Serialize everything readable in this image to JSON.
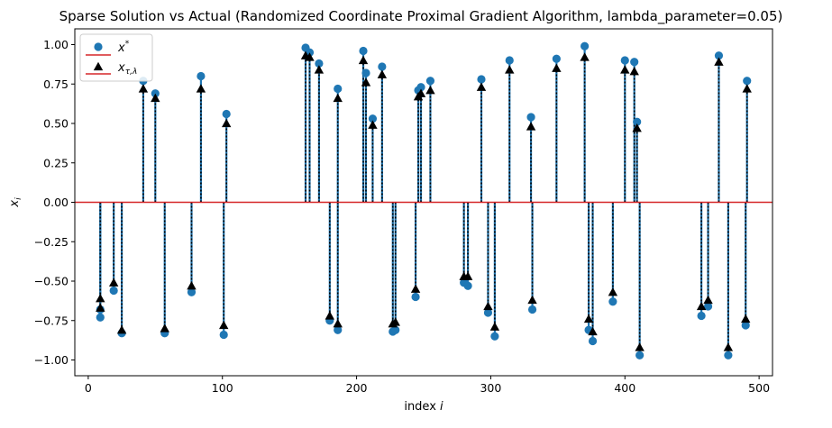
{
  "chart_data": {
    "type": "scatter",
    "title": "Sparse Solution vs Actual (Randomized Coordinate Proximal Gradient Algorithm, lambda_parameter=0.05)",
    "xlabel": "index i",
    "ylabel": "x_i",
    "xlim": [
      -10,
      510
    ],
    "ylim": [
      -1.1,
      1.1
    ],
    "xticks": [
      0,
      100,
      200,
      300,
      400,
      500
    ],
    "yticks": [
      -1.0,
      -0.75,
      -0.5,
      -0.25,
      0.0,
      0.25,
      0.5,
      0.75,
      1.0
    ],
    "xtick_labels": [
      "0",
      "100",
      "200",
      "300",
      "400",
      "500"
    ],
    "ytick_labels": [
      "−1.00",
      "−0.75",
      "−0.50",
      "−0.25",
      "0.00",
      "0.25",
      "0.50",
      "0.75",
      "1.00"
    ],
    "grid": false,
    "legend_position": "top-left",
    "colors": {
      "actual": "#1f77b4",
      "estimate": "#000000",
      "baseline": "#d62728"
    },
    "series": [
      {
        "name": "x*",
        "marker": "circle",
        "x": [
          9,
          9,
          19,
          25,
          41,
          50,
          57,
          77,
          84,
          101,
          103,
          162,
          165,
          172,
          180,
          186,
          186,
          205,
          207,
          212,
          219,
          227,
          229,
          244,
          246,
          248,
          255,
          280,
          283,
          293,
          298,
          303,
          314,
          330,
          331,
          349,
          370,
          373,
          376,
          391,
          400,
          407,
          409,
          411,
          457,
          462,
          470,
          477,
          490,
          491
        ],
        "y": [
          -0.68,
          -0.73,
          -0.56,
          -0.83,
          0.77,
          0.69,
          -0.83,
          -0.57,
          0.8,
          -0.84,
          0.56,
          0.98,
          0.95,
          0.88,
          -0.75,
          0.72,
          -0.81,
          0.96,
          0.82,
          0.53,
          0.86,
          -0.82,
          -0.81,
          -0.6,
          0.71,
          0.73,
          0.77,
          -0.51,
          -0.53,
          0.78,
          -0.7,
          -0.85,
          0.9,
          0.54,
          -0.68,
          0.91,
          0.99,
          -0.81,
          -0.88,
          -0.63,
          0.9,
          0.89,
          0.51,
          -0.97,
          -0.72,
          -0.66,
          0.93,
          -0.97,
          -0.78,
          0.77
        ]
      },
      {
        "name": "x_{τ,λ}",
        "marker": "triangle",
        "x": [
          9,
          9,
          19,
          25,
          41,
          50,
          57,
          77,
          84,
          101,
          103,
          162,
          165,
          172,
          180,
          186,
          186,
          205,
          207,
          212,
          219,
          227,
          229,
          244,
          246,
          248,
          255,
          280,
          283,
          293,
          298,
          303,
          314,
          330,
          331,
          349,
          370,
          373,
          376,
          391,
          400,
          407,
          409,
          411,
          457,
          462,
          470,
          477,
          490,
          491
        ],
        "y": [
          -0.61,
          -0.67,
          -0.51,
          -0.81,
          0.72,
          0.66,
          -0.8,
          -0.53,
          0.72,
          -0.78,
          0.5,
          0.93,
          0.92,
          0.84,
          -0.72,
          0.66,
          -0.77,
          0.9,
          0.76,
          0.49,
          0.81,
          -0.77,
          -0.76,
          -0.55,
          0.67,
          0.69,
          0.71,
          -0.47,
          -0.47,
          0.73,
          -0.66,
          -0.79,
          0.84,
          0.48,
          -0.62,
          0.85,
          0.92,
          -0.74,
          -0.82,
          -0.57,
          0.84,
          0.83,
          0.47,
          -0.92,
          -0.66,
          -0.62,
          0.89,
          -0.92,
          -0.74,
          0.72
        ]
      }
    ],
    "legend": [
      {
        "label": "x*"
      },
      {
        "label": "x_{τ,λ}"
      }
    ]
  }
}
